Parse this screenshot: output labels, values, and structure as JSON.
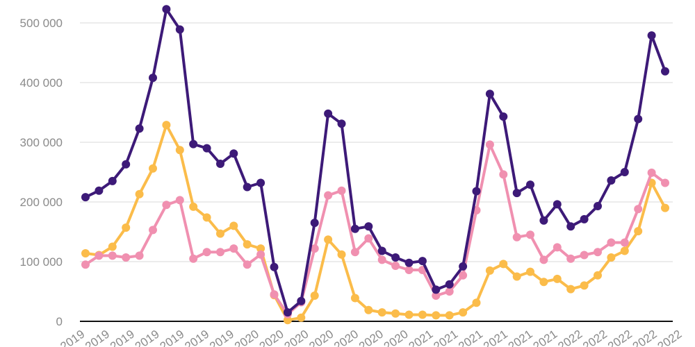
{
  "chart_data": {
    "type": "line",
    "title": "",
    "xlabel": "",
    "ylabel": "",
    "ylim": [
      0,
      520000
    ],
    "yticks": [
      0,
      100000,
      200000,
      300000,
      400000,
      500000
    ],
    "ytick_labels": [
      "0",
      "100 000",
      "200 000",
      "300 000",
      "400 000",
      "500 000"
    ],
    "grid": true,
    "legend": "none",
    "x_tick_labels": [
      "2019",
      "2019",
      "2019",
      "2019",
      "2019",
      "2019",
      "2019",
      "2020",
      "2020",
      "2020",
      "2020",
      "2020",
      "2020",
      "2020",
      "2021",
      "2021",
      "2021",
      "2021",
      "2021",
      "2021",
      "2022",
      "2022",
      "2022",
      "2022",
      "2022"
    ],
    "series": [
      {
        "color": "#3d1a78",
        "values": [
          208000,
          219000,
          235000,
          263000,
          323000,
          408000,
          523000,
          489000,
          297000,
          290000,
          264000,
          281000,
          225000,
          232000,
          91000,
          15000,
          34000,
          165000,
          348000,
          331000,
          155000,
          159000,
          118000,
          107000,
          98000,
          101000,
          53000,
          62000,
          92000,
          218000,
          381000,
          343000,
          215000,
          229000,
          169000,
          196000,
          159000,
          171000,
          193000,
          236000,
          250000,
          339000,
          479000,
          419000
        ]
      },
      {
        "color": "#f090b0",
        "values": [
          95000,
          110000,
          110000,
          107000,
          110000,
          153000,
          195000,
          203000,
          105000,
          116000,
          116000,
          122000,
          95000,
          112000,
          45000,
          12000,
          32000,
          122000,
          211000,
          219000,
          116000,
          139000,
          103000,
          93000,
          86000,
          86000,
          43000,
          50000,
          77000,
          186000,
          296000,
          246000,
          141000,
          145000,
          103000,
          124000,
          105000,
          111000,
          116000,
          132000,
          132000,
          188000,
          249000,
          232000
        ]
      },
      {
        "color": "#fbbc4a",
        "values": [
          114000,
          111000,
          125000,
          157000,
          213000,
          256000,
          329000,
          287000,
          192000,
          174000,
          147000,
          160000,
          129000,
          122000,
          44000,
          2000,
          6000,
          43000,
          137000,
          112000,
          39000,
          19000,
          15000,
          13000,
          11000,
          11000,
          10000,
          10000,
          15000,
          31000,
          85000,
          96000,
          75000,
          83000,
          66000,
          71000,
          54000,
          60000,
          77000,
          107000,
          118000,
          151000,
          232000,
          190000
        ]
      }
    ]
  }
}
